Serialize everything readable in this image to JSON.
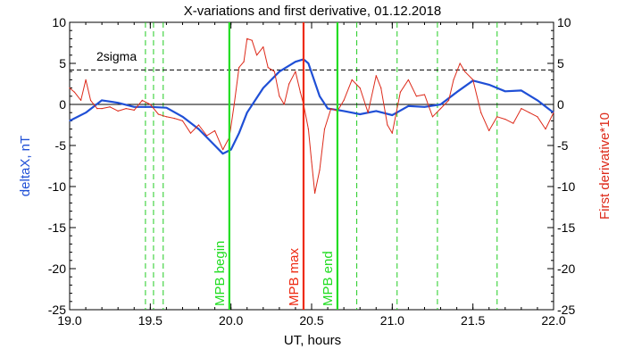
{
  "chart_data": {
    "type": "line",
    "title": "X-variations and first derivative, 01.12.2018",
    "xlabel": "UT, hours",
    "ylabel_left": "deltaX, nT",
    "ylabel_right": "First derivative*10",
    "xlim": [
      19.0,
      22.0
    ],
    "ylim": [
      -25,
      10
    ],
    "x_ticks": [
      19.0,
      19.5,
      20.0,
      20.5,
      21.0,
      21.5,
      22.0
    ],
    "x_tick_labels": [
      "19.0",
      "19.5",
      "20.0",
      "20.5",
      "21.0",
      "21.5",
      "22.0"
    ],
    "y_ticks": [
      10,
      5,
      0,
      -5,
      -10,
      -15,
      -20,
      -25
    ],
    "y_tick_labels": [
      "10",
      "5",
      "0",
      "-5",
      "-10",
      "-15",
      "-20",
      "-25"
    ],
    "sigma_level": 4.2,
    "sigma_label": "2sigma",
    "zero_line": 0,
    "series": [
      {
        "key": "deltaX",
        "color": "#1f4fd6",
        "x": [
          19.0,
          19.1,
          19.2,
          19.3,
          19.4,
          19.5,
          19.6,
          19.7,
          19.8,
          19.9,
          19.95,
          20.0,
          20.05,
          20.1,
          20.2,
          20.3,
          20.4,
          20.45,
          20.48,
          20.55,
          20.6,
          20.7,
          20.8,
          20.9,
          21.0,
          21.1,
          21.2,
          21.3,
          21.4,
          21.5,
          21.6,
          21.7,
          21.8,
          21.9,
          22.0
        ],
        "y": [
          -2.0,
          -1.0,
          0.5,
          0.2,
          -0.3,
          -0.3,
          -0.4,
          -1.5,
          -3.0,
          -5.0,
          -6.0,
          -5.5,
          -3.5,
          -1.0,
          2.0,
          4.0,
          5.2,
          5.5,
          5.0,
          1.0,
          -0.5,
          -0.8,
          -1.2,
          -0.8,
          -1.3,
          -0.2,
          -0.3,
          0.0,
          1.5,
          2.9,
          2.4,
          1.6,
          1.7,
          0.5,
          -1.0
        ]
      },
      {
        "key": "derivative",
        "color": "#dd2a1a",
        "x": [
          19.0,
          19.03,
          19.07,
          19.1,
          19.13,
          19.17,
          19.2,
          19.25,
          19.3,
          19.35,
          19.4,
          19.45,
          19.5,
          19.55,
          19.6,
          19.65,
          19.7,
          19.75,
          19.8,
          19.85,
          19.9,
          19.95,
          19.99,
          20.02,
          20.05,
          20.08,
          20.1,
          20.13,
          20.16,
          20.2,
          20.23,
          20.27,
          20.3,
          20.33,
          20.36,
          20.4,
          20.43,
          20.45,
          20.48,
          20.5,
          20.52,
          20.55,
          20.58,
          20.62,
          20.66,
          20.7,
          20.75,
          20.8,
          20.85,
          20.9,
          20.93,
          20.97,
          21.0,
          21.05,
          21.1,
          21.15,
          21.2,
          21.25,
          21.3,
          21.35,
          21.38,
          21.42,
          21.45,
          21.5,
          21.55,
          21.6,
          21.65,
          21.7,
          21.75,
          21.8,
          21.85,
          21.9,
          21.95,
          22.0
        ],
        "y": [
          2.0,
          1.5,
          0.5,
          3.0,
          0.5,
          -0.5,
          -0.5,
          -0.3,
          -0.8,
          -0.5,
          -0.7,
          0.5,
          0.0,
          -1.2,
          -1.5,
          -1.7,
          -2.0,
          -3.5,
          -2.5,
          -3.8,
          -3.2,
          -5.5,
          -4.0,
          0.0,
          4.5,
          5.2,
          8.0,
          7.8,
          6.0,
          7.0,
          4.5,
          4.0,
          1.0,
          0.0,
          2.5,
          4.0,
          1.5,
          0.0,
          -3.0,
          -7.0,
          -10.8,
          -8.0,
          -3.0,
          -0.5,
          -0.8,
          0.5,
          3.0,
          2.0,
          -1.0,
          3.5,
          2.0,
          -2.5,
          -3.5,
          1.5,
          3.0,
          1.0,
          1.2,
          -1.5,
          -0.5,
          0.5,
          3.0,
          5.0,
          4.0,
          3.0,
          -1.0,
          -3.2,
          -1.5,
          -1.8,
          -2.3,
          -0.5,
          -1.0,
          -1.5,
          -3.0,
          -1.0
        ]
      }
    ],
    "event_lines": [
      {
        "x": 19.99,
        "color": "#22dd22",
        "label": "MPB begin"
      },
      {
        "x": 20.45,
        "color": "#ee2a12",
        "label": "MPB max"
      },
      {
        "x": 20.66,
        "color": "#22dd22",
        "label": "MPB end"
      }
    ],
    "dashed_lines": [
      19.47,
      19.52,
      19.58,
      20.78,
      21.03,
      21.28,
      21.65
    ],
    "colors": {
      "left_axis_label": "#1f4fd6",
      "right_axis_label": "#dd2a1a",
      "sigma_line": "#000000",
      "dashed": "#22cc22"
    }
  }
}
